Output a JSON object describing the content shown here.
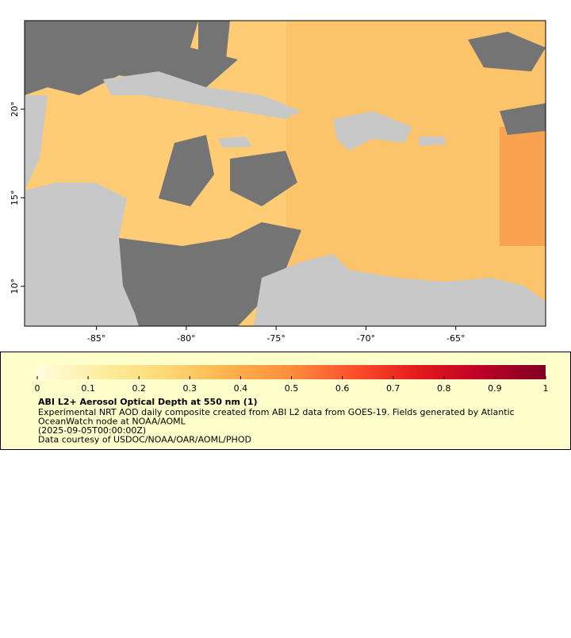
{
  "map": {
    "xlim": [
      -89,
      -60
    ],
    "ylim": [
      7.75,
      25
    ],
    "xticks": [
      {
        "value": -85,
        "label": "-85°"
      },
      {
        "value": -80,
        "label": "-80°"
      },
      {
        "value": -75,
        "label": "-75°"
      },
      {
        "value": -70,
        "label": "-70°"
      },
      {
        "value": -65,
        "label": "-65°"
      }
    ],
    "yticks": [
      {
        "value": 10,
        "label": "10°"
      },
      {
        "value": 15,
        "label": "15°"
      },
      {
        "value": 20,
        "label": "20°"
      }
    ]
  },
  "colorbar": {
    "lim": [
      0,
      1
    ],
    "ticks": [
      0,
      0.1,
      0.2,
      0.3,
      0.4,
      0.5,
      0.6,
      0.7,
      0.8,
      0.9,
      1
    ],
    "colors": [
      "#fffde0",
      "#ffeda0",
      "#fed976",
      "#feb24c",
      "#fd8d3c",
      "#fc4e2a",
      "#e31a1c",
      "#bd0026",
      "#800026"
    ]
  },
  "legend": {
    "title": "ABI L2+ Aerosol Optical Depth at 550 nm (1)",
    "lines": [
      "Experimental NRT AOD daily composite created from ABI L2 data from GOES-19. Fields generated by Atlantic",
      "OceanWatch node at NOAA/AOML",
      "(2025-09-05T00:00:00Z)",
      "Data courtesy of USDOC/NOAA/OAR/AOML/PHOD"
    ]
  }
}
